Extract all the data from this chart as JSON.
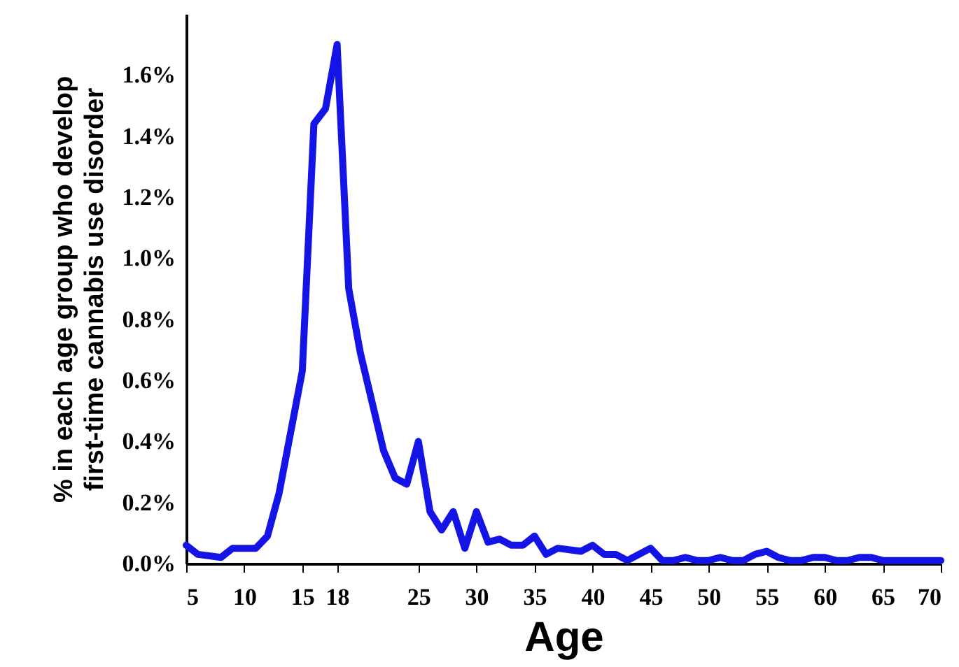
{
  "chart_data": {
    "type": "line",
    "xlabel": "Age",
    "ylabel": "% in each age group who develop\nfirst-time cannabis use disorder",
    "x": [
      5,
      6,
      8,
      9,
      11,
      12,
      13,
      15,
      16,
      17,
      18,
      19,
      20,
      22,
      23,
      24,
      25,
      26,
      27,
      28,
      29,
      30,
      31,
      32,
      33,
      34,
      35,
      36,
      37,
      39,
      40,
      41,
      42,
      43,
      44,
      45,
      46,
      47,
      48,
      49,
      50,
      51,
      52,
      53,
      54,
      55,
      56,
      57,
      58,
      59,
      60,
      61,
      62,
      63,
      64,
      65,
      66,
      67,
      68,
      69,
      70
    ],
    "series": [
      {
        "color": "#1414e6",
        "values": [
          0.06,
          0.03,
          0.02,
          0.05,
          0.05,
          0.09,
          0.23,
          0.63,
          1.44,
          1.49,
          1.7,
          0.9,
          0.69,
          0.37,
          0.28,
          0.26,
          0.4,
          0.17,
          0.11,
          0.17,
          0.05,
          0.17,
          0.07,
          0.08,
          0.06,
          0.06,
          0.09,
          0.03,
          0.05,
          0.04,
          0.06,
          0.03,
          0.03,
          0.01,
          0.03,
          0.05,
          0.01,
          0.01,
          0.02,
          0.01,
          0.01,
          0.02,
          0.01,
          0.01,
          0.03,
          0.04,
          0.02,
          0.01,
          0.01,
          0.02,
          0.02,
          0.01,
          0.01,
          0.02,
          0.02,
          0.01,
          0.01,
          0.01,
          0.01,
          0.01,
          0.01
        ]
      }
    ],
    "xlim": [
      5,
      70
    ],
    "xticks": [
      5,
      10,
      15,
      18,
      25,
      30,
      35,
      40,
      45,
      50,
      55,
      60,
      65,
      70
    ],
    "ylim": [
      0,
      1.8
    ],
    "yticks": [
      {
        "value": 0,
        "label": "0.0%"
      },
      {
        "value": 0.2,
        "label": "0.2%"
      },
      {
        "value": 0.4,
        "label": "0.4%"
      },
      {
        "value": 0.6,
        "label": "0.6%"
      },
      {
        "value": 0.8,
        "label": "0.8%"
      },
      {
        "value": 1.0,
        "label": "1.0%"
      },
      {
        "value": 1.2,
        "label": "1.2%"
      },
      {
        "value": 1.4,
        "label": "1.4%"
      },
      {
        "value": 1.6,
        "label": "1.6%"
      }
    ],
    "grid": false,
    "marker": "none",
    "line_style": "solid"
  }
}
